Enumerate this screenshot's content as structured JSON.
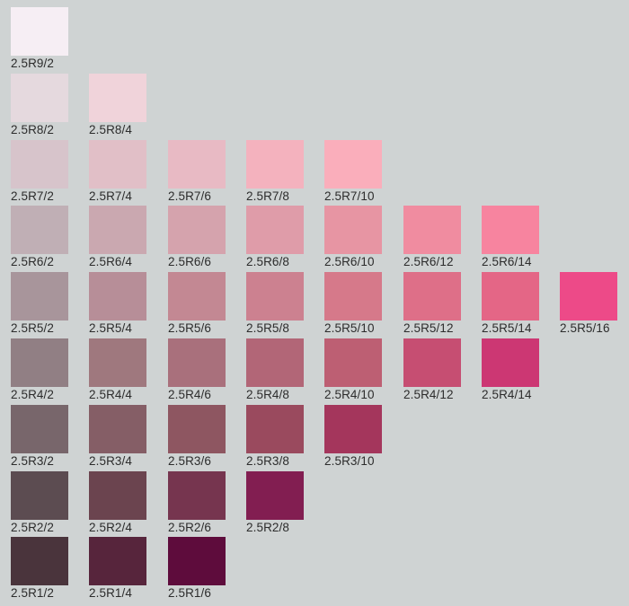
{
  "chart_data": {
    "type": "table",
    "hue": "2.5R",
    "rows": [
      {
        "value": 9,
        "chips": [
          {
            "label": "2.5R9/2",
            "chroma": 2,
            "color": "#f6eef4"
          }
        ]
      },
      {
        "value": 8,
        "chips": [
          {
            "label": "2.5R8/2",
            "chroma": 2,
            "color": "#e5d9de"
          },
          {
            "label": "2.5R8/4",
            "chroma": 4,
            "color": "#f0d3da"
          }
        ]
      },
      {
        "value": 7,
        "chips": [
          {
            "label": "2.5R7/2",
            "chroma": 2,
            "color": "#d7c4cb"
          },
          {
            "label": "2.5R7/4",
            "chroma": 4,
            "color": "#e1bfc7"
          },
          {
            "label": "2.5R7/6",
            "chroma": 6,
            "color": "#e8bac4"
          },
          {
            "label": "2.5R7/8",
            "chroma": 8,
            "color": "#f4b2be"
          },
          {
            "label": "2.5R7/10",
            "chroma": 10,
            "color": "#faaebb"
          }
        ]
      },
      {
        "value": 6,
        "chips": [
          {
            "label": "2.5R6/2",
            "chroma": 2,
            "color": "#c0afb5"
          },
          {
            "label": "2.5R6/4",
            "chroma": 4,
            "color": "#caa8b0"
          },
          {
            "label": "2.5R6/6",
            "chroma": 6,
            "color": "#d5a3ad"
          },
          {
            "label": "2.5R6/8",
            "chroma": 8,
            "color": "#df9ca9"
          },
          {
            "label": "2.5R6/10",
            "chroma": 10,
            "color": "#e795a3"
          },
          {
            "label": "2.5R6/12",
            "chroma": 12,
            "color": "#f08ca0"
          },
          {
            "label": "2.5R6/14",
            "chroma": 14,
            "color": "#f7849f"
          }
        ]
      },
      {
        "value": 5,
        "chips": [
          {
            "label": "2.5R5/2",
            "chroma": 2,
            "color": "#a8959b"
          },
          {
            "label": "2.5R5/4",
            "chroma": 4,
            "color": "#b78e98"
          },
          {
            "label": "2.5R5/6",
            "chroma": 6,
            "color": "#c38893"
          },
          {
            "label": "2.5R5/8",
            "chroma": 8,
            "color": "#cc8190"
          },
          {
            "label": "2.5R5/10",
            "chroma": 10,
            "color": "#d6798a"
          },
          {
            "label": "2.5R5/12",
            "chroma": 12,
            "color": "#de6f88"
          },
          {
            "label": "2.5R5/14",
            "chroma": 14,
            "color": "#e46686"
          },
          {
            "label": "2.5R5/16",
            "chroma": 16,
            "color": "#ed4a88"
          }
        ]
      },
      {
        "value": 4,
        "chips": [
          {
            "label": "2.5R4/2",
            "chroma": 2,
            "color": "#917f84"
          },
          {
            "label": "2.5R4/4",
            "chroma": 4,
            "color": "#9f787e"
          },
          {
            "label": "2.5R4/6",
            "chroma": 6,
            "color": "#a9707c"
          },
          {
            "label": "2.5R4/8",
            "chroma": 8,
            "color": "#b26677"
          },
          {
            "label": "2.5R4/10",
            "chroma": 10,
            "color": "#bd5f73"
          },
          {
            "label": "2.5R4/12",
            "chroma": 12,
            "color": "#c64e72"
          },
          {
            "label": "2.5R4/14",
            "chroma": 14,
            "color": "#cc3773"
          }
        ]
      },
      {
        "value": 3,
        "chips": [
          {
            "label": "2.5R3/2",
            "chroma": 2,
            "color": "#78666b"
          },
          {
            "label": "2.5R3/4",
            "chroma": 4,
            "color": "#855e66"
          },
          {
            "label": "2.5R3/6",
            "chroma": 6,
            "color": "#8e5661"
          },
          {
            "label": "2.5R3/8",
            "chroma": 8,
            "color": "#9a4a5e"
          },
          {
            "label": "2.5R3/10",
            "chroma": 10,
            "color": "#a4365c"
          }
        ]
      },
      {
        "value": 2,
        "chips": [
          {
            "label": "2.5R2/2",
            "chroma": 2,
            "color": "#5c4c51"
          },
          {
            "label": "2.5R2/4",
            "chroma": 4,
            "color": "#6b444f"
          },
          {
            "label": "2.5R2/6",
            "chroma": 6,
            "color": "#76354f"
          },
          {
            "label": "2.5R2/8",
            "chroma": 8,
            "color": "#821e51"
          }
        ]
      },
      {
        "value": 1,
        "chips": [
          {
            "label": "2.5R1/2",
            "chroma": 2,
            "color": "#4a343c"
          },
          {
            "label": "2.5R1/4",
            "chroma": 4,
            "color": "#57253c"
          },
          {
            "label": "2.5R1/6",
            "chroma": 6,
            "color": "#5e0c3c"
          }
        ]
      }
    ]
  }
}
